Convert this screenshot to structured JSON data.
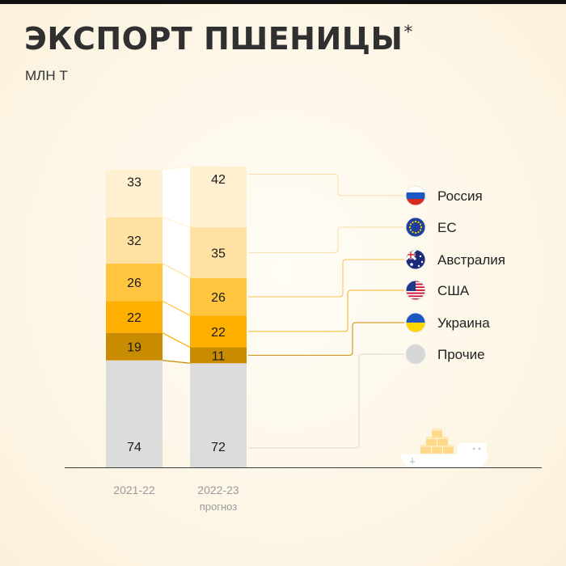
{
  "page": {
    "title": "ЭКСПОРТ ПШЕНИЦЫ",
    "title_mark": "*",
    "unit": "МЛН Т"
  },
  "chart_data": {
    "type": "bar",
    "stacked": true,
    "title": "ЭКСПОРТ ПШЕНИЦЫ*",
    "ylabel": "МЛН Т",
    "categories": [
      "2021-22",
      "2022-23"
    ],
    "category_notes": [
      "",
      "прогноз"
    ],
    "series": [
      {
        "name": "Прочие",
        "values": [
          74,
          72
        ],
        "color": "#dcdcdc",
        "icon": "other-circle-icon"
      },
      {
        "name": "Украина",
        "values": [
          19,
          11
        ],
        "color": "#c98b00",
        "icon": "ukraine-flag-icon"
      },
      {
        "name": "США",
        "values": [
          22,
          22
        ],
        "color": "#ffaf00",
        "icon": "usa-flag-icon"
      },
      {
        "name": "Австралия",
        "values": [
          26,
          26
        ],
        "color": "#ffc53e",
        "icon": "australia-flag-icon"
      },
      {
        "name": "ЕС",
        "values": [
          32,
          35
        ],
        "color": "#ffe1a3",
        "icon": "eu-flag-icon"
      },
      {
        "name": "Россия",
        "values": [
          33,
          42
        ],
        "color": "#fff0d2",
        "icon": "russia-flag-icon"
      }
    ],
    "legend_order": [
      "Россия",
      "ЕС",
      "Австралия",
      "США",
      "Украина",
      "Прочие"
    ],
    "legend_position": "right",
    "grid": false,
    "decoration": "ship-with-cargo-icon"
  }
}
